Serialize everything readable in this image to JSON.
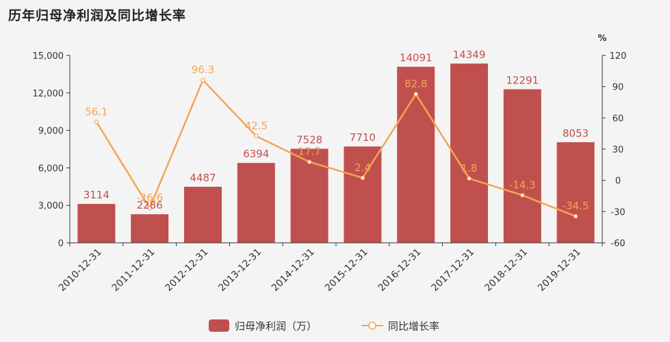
{
  "title": "历年归母净利润及同比增长率",
  "colors": {
    "bar": "#c0504d",
    "line": "#f5a455",
    "axis": "#333333",
    "background": "#f4f4f4"
  },
  "chart_data": {
    "type": "bar",
    "categories": [
      "2010-12-31",
      "2011-12-31",
      "2012-12-31",
      "2013-12-31",
      "2014-12-31",
      "2015-12-31",
      "2016-12-31",
      "2017-12-31",
      "2018-12-31",
      "2019-12-31"
    ],
    "series": [
      {
        "name": "归母净利润（万）",
        "type": "bar",
        "axis": "left",
        "values": [
          3114,
          2286,
          4487,
          6394,
          7528,
          7710,
          14091,
          14349,
          12291,
          8053
        ]
      },
      {
        "name": "同比增长率",
        "type": "line",
        "axis": "right",
        "values": [
          56.1,
          -26.6,
          96.3,
          42.5,
          17.7,
          2.4,
          82.8,
          1.8,
          -14.3,
          -34.5
        ]
      }
    ],
    "left_axis": {
      "ylim": [
        0,
        15000
      ],
      "ticks": [
        0,
        3000,
        6000,
        9000,
        12000,
        15000
      ],
      "tick_labels": [
        "0",
        "3,000",
        "6,000",
        "9,000",
        "12,000",
        "15,000"
      ]
    },
    "right_axis": {
      "unit": "%",
      "ylim": [
        -60,
        120
      ],
      "ticks": [
        -60,
        -30,
        0,
        30,
        60,
        90,
        120
      ],
      "tick_labels": [
        "-60",
        "-30",
        "0",
        "30",
        "60",
        "90",
        "120"
      ]
    },
    "grid": false,
    "legend_position": "bottom-center"
  }
}
